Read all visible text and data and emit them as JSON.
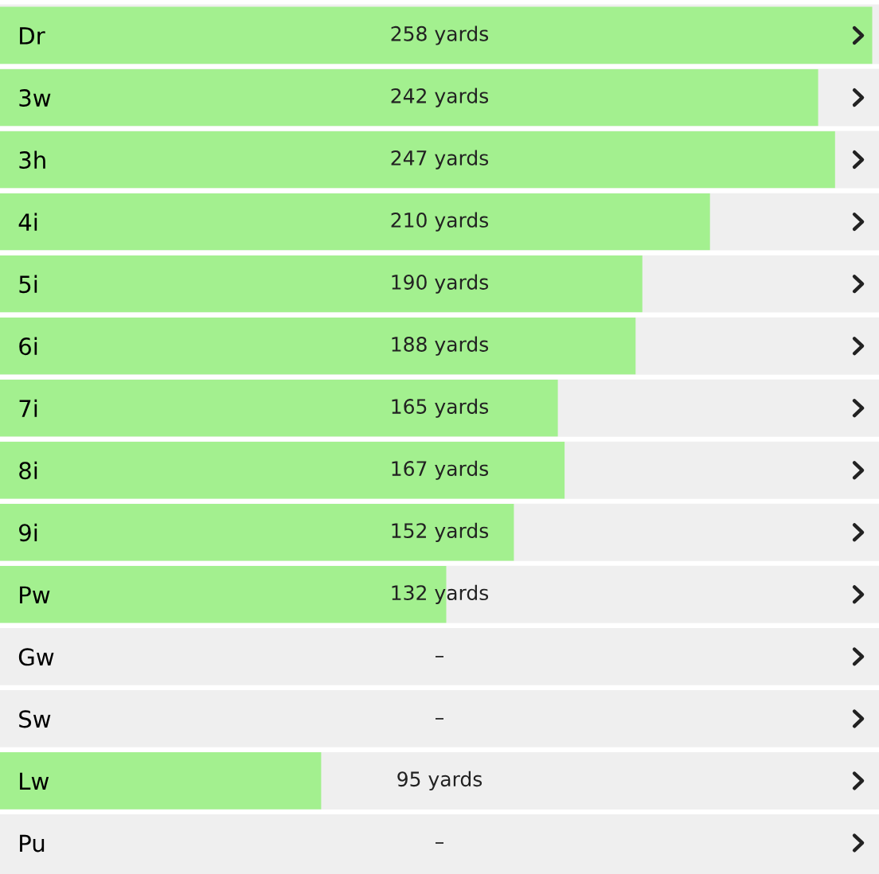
{
  "chart_data": {
    "type": "bar",
    "orientation": "horizontal",
    "categories": [
      "Dr",
      "3w",
      "3h",
      "4i",
      "5i",
      "6i",
      "7i",
      "8i",
      "9i",
      "Pw",
      "Gw",
      "Sw",
      "Lw",
      "Pu"
    ],
    "values": [
      258,
      242,
      247,
      210,
      190,
      188,
      165,
      167,
      152,
      132,
      null,
      null,
      95,
      null
    ],
    "value_labels": [
      "258 yards",
      "242 yards",
      "247 yards",
      "210 yards",
      "190 yards",
      "188 yards",
      "165 yards",
      "167 yards",
      "152 yards",
      "132 yards",
      "–",
      "–",
      "95 yards",
      "–"
    ],
    "color": "#a3f08f",
    "xlim": [
      0,
      260
    ],
    "tick_labels": "y",
    "grid": false
  }
}
